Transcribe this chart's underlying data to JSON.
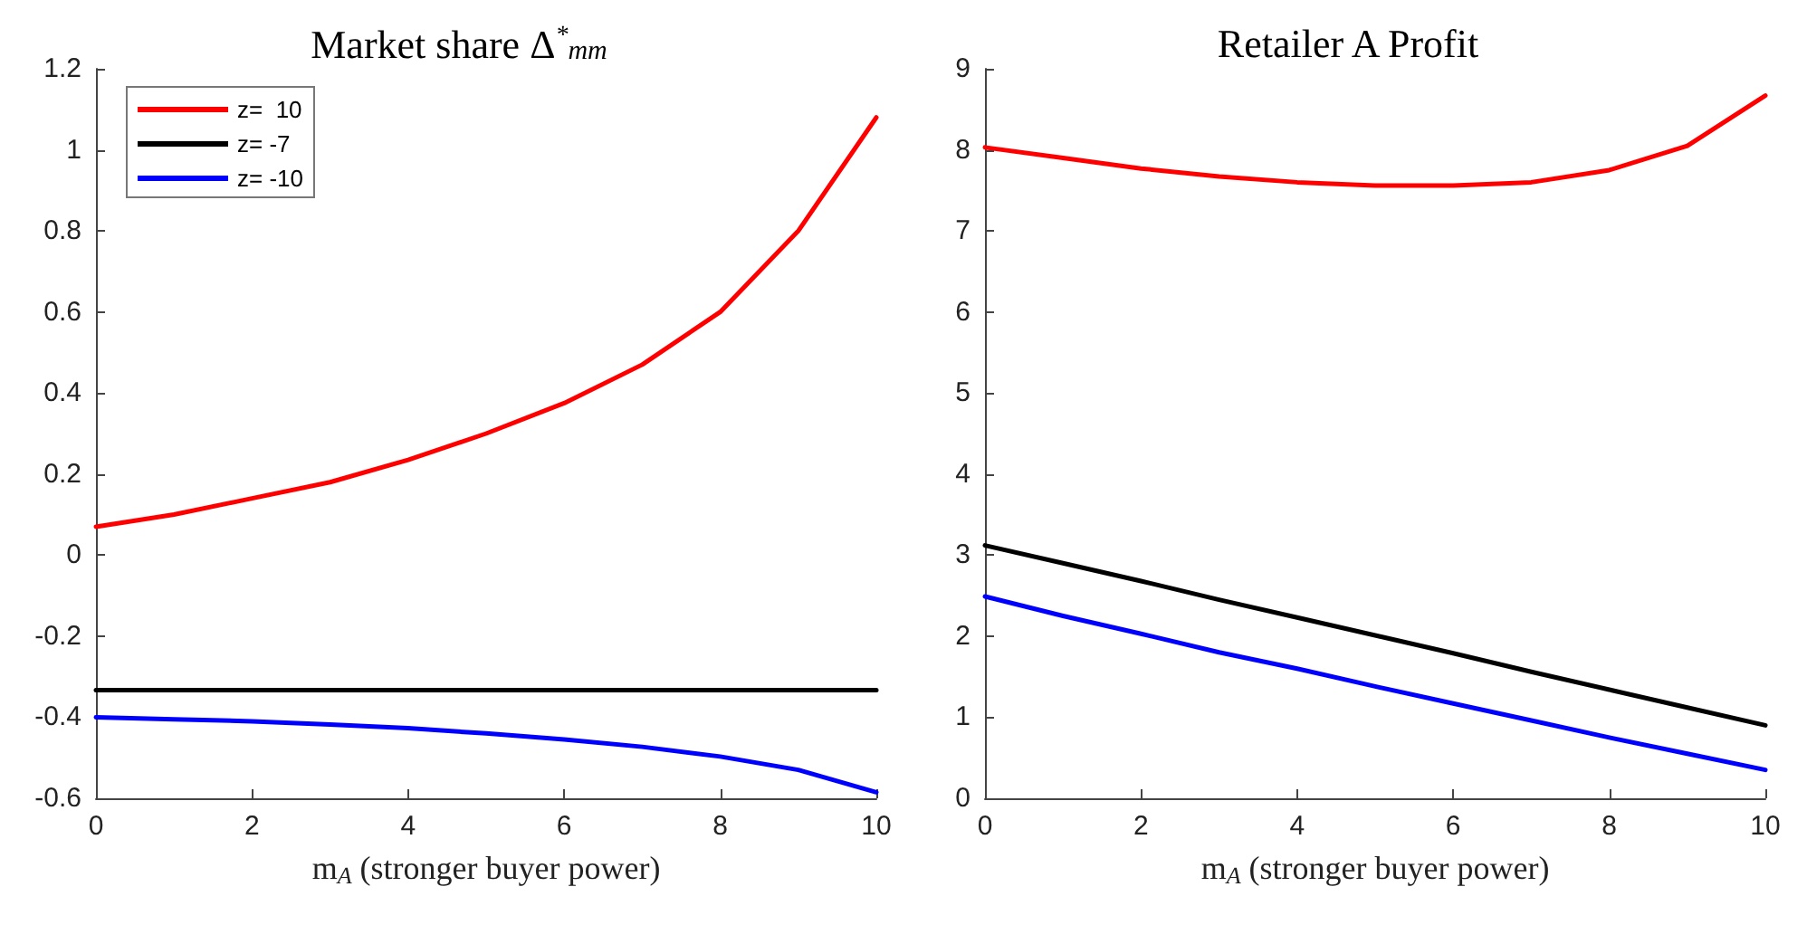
{
  "chart_data": [
    {
      "type": "line",
      "title": "Market share Δ$^{*}$$_{mm}$",
      "xlabel": "m$_{A}$ (stronger buyer power)",
      "x": [
        0,
        1,
        2,
        3,
        4,
        5,
        6,
        7,
        8,
        9,
        10
      ],
      "series": [
        {
          "name": "z=  10",
          "color": "#ff0000",
          "values": [
            0.07,
            0.1,
            0.14,
            0.18,
            0.235,
            0.3,
            0.375,
            0.47,
            0.6,
            0.8,
            1.08
          ]
        },
        {
          "name": "z= -7",
          "color": "#000000",
          "values": [
            -0.333,
            -0.333,
            -0.333,
            -0.333,
            -0.333,
            -0.333,
            -0.333,
            -0.333,
            -0.333,
            -0.333,
            -0.333
          ]
        },
        {
          "name": "z= -10",
          "color": "#0000ff",
          "values": [
            -0.4,
            -0.405,
            -0.41,
            -0.418,
            -0.427,
            -0.44,
            -0.455,
            -0.473,
            -0.497,
            -0.53,
            -0.585
          ]
        }
      ],
      "xlim": [
        0,
        10
      ],
      "xticks": [
        0,
        2,
        4,
        6,
        8,
        10
      ],
      "ylim": [
        -0.6,
        1.2
      ],
      "yticks": [
        -0.6,
        -0.4,
        -0.2,
        0,
        0.2,
        0.4,
        0.6,
        0.8,
        1,
        1.2
      ],
      "grid": false,
      "legend": "top left",
      "marker": "none",
      "line_style": "solid"
    },
    {
      "type": "line",
      "title": "Retailer A Profit",
      "xlabel": "m$_{A}$ (stronger buyer power)",
      "x": [
        0,
        1,
        2,
        3,
        4,
        5,
        6,
        7,
        8,
        9,
        10
      ],
      "series": [
        {
          "color": "#ff0000",
          "values": [
            8.03,
            7.9,
            7.77,
            7.67,
            7.6,
            7.56,
            7.56,
            7.6,
            7.75,
            8.05,
            8.67
          ]
        },
        {
          "color": "#000000",
          "values": [
            3.12,
            2.9,
            2.68,
            2.45,
            2.23,
            2.01,
            1.79,
            1.56,
            1.34,
            1.12,
            0.9
          ]
        },
        {
          "color": "#0000ff",
          "values": [
            2.49,
            2.25,
            2.03,
            1.8,
            1.6,
            1.38,
            1.17,
            0.96,
            0.75,
            0.55,
            0.35
          ]
        }
      ],
      "xlim": [
        0,
        10
      ],
      "xticks": [
        0,
        2,
        4,
        6,
        8,
        10
      ],
      "ylim": [
        0,
        9
      ],
      "yticks": [
        0,
        1,
        2,
        3,
        4,
        5,
        6,
        7,
        8,
        9
      ],
      "grid": false,
      "legend": false,
      "marker": "none",
      "line_style": "solid"
    }
  ]
}
